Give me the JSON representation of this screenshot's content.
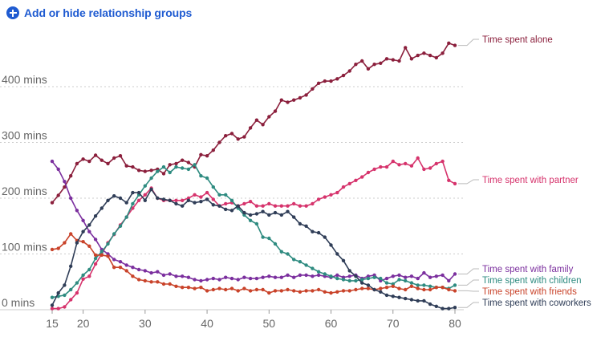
{
  "header": {
    "add_groups_label": "Add or hide relationship groups",
    "add_icon": "plus-circle-icon"
  },
  "chart_data": {
    "type": "line",
    "title": "",
    "xlabel": "",
    "ylabel": "",
    "xlim": [
      15,
      80
    ],
    "ylim": [
      0,
      480
    ],
    "y_ticks": [
      0,
      100,
      200,
      300,
      400
    ],
    "y_tick_labels": [
      "0 mins",
      "100 mins",
      "200 mins",
      "300 mins",
      "400 mins"
    ],
    "x_ticks": [
      15,
      20,
      30,
      40,
      50,
      60,
      70,
      80
    ],
    "x_tick_labels": [
      "15",
      "20",
      "30",
      "40",
      "50",
      "60",
      "70",
      "80"
    ],
    "grid": true,
    "legend": "right (end-of-line labels)",
    "series": [
      {
        "name": "Time spent alone",
        "color": "#8b1f3c",
        "x": [
          15,
          16,
          17,
          18,
          19,
          20,
          21,
          22,
          23,
          24,
          25,
          26,
          27,
          28,
          29,
          30,
          31,
          32,
          33,
          34,
          35,
          36,
          37,
          38,
          39,
          40,
          41,
          42,
          43,
          44,
          45,
          46,
          47,
          48,
          49,
          50,
          51,
          52,
          53,
          54,
          55,
          56,
          57,
          58,
          59,
          60,
          61,
          62,
          63,
          64,
          65,
          66,
          67,
          68,
          69,
          70,
          71,
          72,
          73,
          74,
          75,
          76,
          77,
          78,
          79,
          80
        ],
        "values": [
          192,
          205,
          220,
          240,
          262,
          270,
          266,
          277,
          268,
          262,
          272,
          276,
          258,
          256,
          250,
          248,
          250,
          252,
          244,
          260,
          262,
          268,
          264,
          256,
          278,
          276,
          286,
          300,
          312,
          316,
          306,
          310,
          326,
          340,
          332,
          346,
          356,
          376,
          372,
          376,
          380,
          385,
          396,
          406,
          410,
          410,
          414,
          420,
          428,
          440,
          446,
          432,
          440,
          442,
          450,
          448,
          446,
          470,
          450,
          456,
          460,
          456,
          452,
          460,
          478,
          474
        ]
      },
      {
        "name": "Time spent with partner",
        "color": "#d6336c",
        "x": [
          15,
          16,
          17,
          18,
          19,
          20,
          21,
          22,
          23,
          24,
          25,
          26,
          27,
          28,
          29,
          30,
          31,
          32,
          33,
          34,
          35,
          36,
          37,
          38,
          39,
          40,
          41,
          42,
          43,
          44,
          45,
          46,
          47,
          48,
          49,
          50,
          51,
          52,
          53,
          54,
          55,
          56,
          57,
          58,
          59,
          60,
          61,
          62,
          63,
          64,
          65,
          66,
          67,
          68,
          69,
          70,
          71,
          72,
          73,
          74,
          75,
          76,
          77,
          78,
          79,
          80
        ],
        "values": [
          2,
          2,
          5,
          18,
          30,
          55,
          60,
          82,
          100,
          120,
          135,
          152,
          166,
          182,
          196,
          206,
          218,
          200,
          196,
          196,
          196,
          196,
          200,
          206,
          202,
          210,
          198,
          186,
          190,
          192,
          186,
          190,
          194,
          186,
          186,
          190,
          186,
          186,
          186,
          190,
          186,
          186,
          190,
          198,
          202,
          206,
          210,
          220,
          226,
          232,
          238,
          246,
          252,
          256,
          256,
          266,
          260,
          262,
          258,
          272,
          252,
          254,
          262,
          266,
          232,
          226
        ]
      },
      {
        "name": "Time spent with family",
        "color": "#7b2f9e",
        "x": [
          15,
          16,
          17,
          18,
          19,
          20,
          21,
          22,
          23,
          24,
          25,
          26,
          27,
          28,
          29,
          30,
          31,
          32,
          33,
          34,
          35,
          36,
          37,
          38,
          39,
          40,
          41,
          42,
          43,
          44,
          45,
          46,
          47,
          48,
          49,
          50,
          51,
          52,
          53,
          54,
          55,
          56,
          57,
          58,
          59,
          60,
          61,
          62,
          63,
          64,
          65,
          66,
          67,
          68,
          69,
          70,
          71,
          72,
          73,
          74,
          75,
          76,
          77,
          78,
          79,
          80
        ],
        "values": [
          266,
          252,
          230,
          200,
          178,
          160,
          140,
          126,
          108,
          100,
          90,
          86,
          80,
          76,
          72,
          70,
          66,
          68,
          62,
          64,
          60,
          60,
          58,
          54,
          52,
          54,
          56,
          54,
          58,
          56,
          54,
          58,
          56,
          56,
          58,
          60,
          58,
          58,
          62,
          58,
          62,
          62,
          60,
          62,
          60,
          58,
          62,
          58,
          60,
          62,
          56,
          60,
          62,
          52,
          56,
          60,
          62,
          58,
          60,
          56,
          66,
          58,
          60,
          62,
          52,
          64
        ]
      },
      {
        "name": "Time spent with children",
        "color": "#2e8b80",
        "x": [
          15,
          16,
          17,
          18,
          19,
          20,
          21,
          22,
          23,
          24,
          25,
          26,
          27,
          28,
          29,
          30,
          31,
          32,
          33,
          34,
          35,
          36,
          37,
          38,
          39,
          40,
          41,
          42,
          43,
          44,
          45,
          46,
          47,
          48,
          49,
          50,
          51,
          52,
          53,
          54,
          55,
          56,
          57,
          58,
          59,
          60,
          61,
          62,
          63,
          64,
          65,
          66,
          67,
          68,
          69,
          70,
          71,
          72,
          73,
          74,
          75,
          76,
          77,
          78,
          79,
          80
        ],
        "values": [
          22,
          24,
          26,
          36,
          48,
          62,
          72,
          92,
          104,
          118,
          136,
          150,
          166,
          190,
          206,
          222,
          236,
          248,
          256,
          246,
          256,
          254,
          252,
          260,
          240,
          236,
          220,
          206,
          206,
          196,
          182,
          170,
          160,
          154,
          130,
          128,
          118,
          104,
          100,
          90,
          86,
          80,
          74,
          68,
          64,
          60,
          56,
          54,
          52,
          52,
          54,
          56,
          58,
          56,
          48,
          46,
          54,
          52,
          48,
          44,
          44,
          42,
          40,
          40,
          38,
          44
        ]
      },
      {
        "name": "Time spent with friends",
        "color": "#c9432a",
        "x": [
          15,
          16,
          17,
          18,
          19,
          20,
          21,
          22,
          23,
          24,
          25,
          26,
          27,
          28,
          29,
          30,
          31,
          32,
          33,
          34,
          35,
          36,
          37,
          38,
          39,
          40,
          41,
          42,
          43,
          44,
          45,
          46,
          47,
          48,
          49,
          50,
          51,
          52,
          53,
          54,
          55,
          56,
          57,
          58,
          59,
          60,
          61,
          62,
          63,
          64,
          65,
          66,
          67,
          68,
          69,
          70,
          71,
          72,
          73,
          74,
          75,
          76,
          77,
          78,
          79,
          80
        ],
        "values": [
          108,
          110,
          120,
          136,
          124,
          122,
          114,
          98,
          98,
          96,
          76,
          76,
          70,
          60,
          54,
          52,
          50,
          50,
          46,
          46,
          42,
          40,
          40,
          38,
          40,
          34,
          36,
          38,
          36,
          38,
          34,
          38,
          34,
          36,
          36,
          30,
          34,
          34,
          36,
          34,
          32,
          34,
          34,
          36,
          32,
          30,
          32,
          34,
          34,
          36,
          38,
          38,
          36,
          38,
          40,
          42,
          38,
          36,
          42,
          38,
          36,
          36,
          40,
          40,
          36,
          34
        ]
      },
      {
        "name": "Time spent with coworkers",
        "color": "#2f3d57",
        "x": [
          15,
          16,
          17,
          18,
          19,
          20,
          21,
          22,
          23,
          24,
          25,
          26,
          27,
          28,
          29,
          30,
          31,
          32,
          33,
          34,
          35,
          36,
          37,
          38,
          39,
          40,
          41,
          42,
          43,
          44,
          45,
          46,
          47,
          48,
          49,
          50,
          51,
          52,
          53,
          54,
          55,
          56,
          57,
          58,
          59,
          60,
          61,
          62,
          63,
          64,
          65,
          66,
          67,
          68,
          69,
          70,
          71,
          72,
          73,
          74,
          75,
          76,
          77,
          78,
          79,
          80
        ],
        "values": [
          8,
          30,
          44,
          78,
          120,
          140,
          152,
          168,
          182,
          196,
          204,
          200,
          192,
          210,
          210,
          196,
          216,
          200,
          198,
          196,
          190,
          186,
          196,
          192,
          194,
          198,
          188,
          186,
          180,
          178,
          186,
          174,
          170,
          172,
          176,
          170,
          174,
          170,
          176,
          166,
          154,
          150,
          140,
          138,
          130,
          116,
          100,
          88,
          70,
          60,
          48,
          44,
          36,
          32,
          26,
          24,
          22,
          20,
          18,
          16,
          16,
          10,
          6,
          2,
          2,
          4
        ]
      }
    ]
  }
}
